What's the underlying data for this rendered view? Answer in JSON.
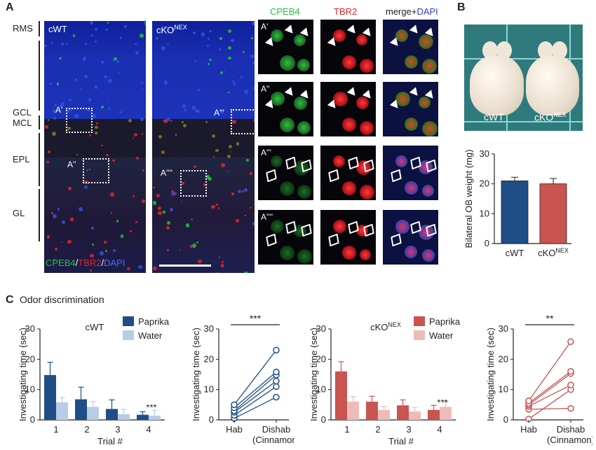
{
  "panel_a": {
    "letter": "A",
    "layers": [
      "RMS",
      "GCL",
      "MCL",
      "EPL",
      "GL"
    ],
    "cwt_label": "cWT",
    "cko_label_base": "cKO",
    "cko_label_sup": "NEX",
    "stain_legend": {
      "cpeb4": "CPEB4",
      "sep1": "/",
      "tbr2": "TBR2",
      "sep2": "/",
      "dapi": "DAPI"
    },
    "box_labels": [
      "A'",
      "A''",
      "A'''",
      "A''''"
    ],
    "column_headers": {
      "cpeb4": "CPEB4",
      "tbr2": "TBR2",
      "merge": "merge+",
      "dapi": "DAPI"
    },
    "row_labels": [
      "A'",
      "A''",
      "A'''",
      "A''''"
    ],
    "colors": {
      "green": "#22c33a",
      "red": "#e3262b",
      "blue": "#2b3fd6"
    }
  },
  "panel_b": {
    "letter": "B",
    "photo_labels": {
      "cwt": "cWT",
      "cko_base": "cKO",
      "cko_sup": "NEX"
    }
  },
  "panel_c": {
    "letter": "C",
    "title": "Odor discrimination"
  },
  "chart_data": [
    {
      "id": "ob_weight",
      "type": "bar",
      "categories": [
        "cWT",
        "cKO"
      ],
      "category_sup": [
        "",
        "NEX"
      ],
      "values": [
        21,
        20
      ],
      "errors": [
        1.2,
        1.8
      ],
      "colors": [
        "#1f4e87",
        "#c95450"
      ],
      "ylabel": "Bilateral OB weight (mg)",
      "ylim": [
        0,
        30
      ],
      "yticks": [
        0,
        10,
        20,
        30
      ]
    },
    {
      "id": "cwt_trials",
      "type": "bar",
      "group_label": "cWT",
      "group_sup": "",
      "categories": [
        "1",
        "2",
        "3",
        "4"
      ],
      "series": [
        {
          "name": "Paprika",
          "values": [
            14.8,
            6.8,
            3.6,
            1.7
          ],
          "errors": [
            4.2,
            4.0,
            3.0,
            1.0
          ],
          "color": "#1f4e87"
        },
        {
          "name": "Water",
          "values": [
            5.8,
            4.3,
            1.9,
            1.4
          ],
          "errors": [
            1.6,
            1.8,
            1.6,
            1.8
          ],
          "color": "#b7cde6"
        }
      ],
      "annotation": {
        "category": "4",
        "text": "***"
      },
      "xlabel": "Trial #",
      "ylabel": "Investigating time (sec)",
      "ylim": [
        0,
        30
      ],
      "yticks": [
        0,
        10,
        20,
        30
      ]
    },
    {
      "id": "cwt_paired",
      "type": "line",
      "categories": [
        "Hab",
        "Dishab"
      ],
      "sublabel": "(Cinnamon)",
      "series": [
        {
          "values": [
            0.5,
            7.5
          ]
        },
        {
          "values": [
            1.5,
            11.0
          ]
        },
        {
          "values": [
            2.5,
            12.8
          ]
        },
        {
          "values": [
            3.0,
            14.8
          ]
        },
        {
          "values": [
            4.0,
            15.8
          ]
        },
        {
          "values": [
            5.0,
            23.0
          ]
        }
      ],
      "color": "#1f4e87",
      "significance": "***",
      "ylabel": "Investigating time (sec)",
      "ylim": [
        0,
        30
      ],
      "yticks": [
        0,
        10,
        20,
        30
      ]
    },
    {
      "id": "cko_trials",
      "type": "bar",
      "group_label": "cKO",
      "group_sup": "NEX",
      "categories": [
        "1",
        "2",
        "3",
        "4"
      ],
      "series": [
        {
          "name": "Paprika",
          "values": [
            16.0,
            6.0,
            4.8,
            3.3
          ],
          "errors": [
            3.2,
            1.8,
            1.8,
            1.5
          ],
          "color": "#c95450"
        },
        {
          "name": "Water",
          "values": [
            6.0,
            3.3,
            2.8,
            4.3
          ],
          "errors": [
            1.7,
            1.2,
            1.3,
            1.8
          ],
          "color": "#eebcb8"
        }
      ],
      "annotation": {
        "category": "4",
        "text": "***"
      },
      "xlabel": "Trial #",
      "ylabel": "Investigating time (sec)",
      "ylim": [
        0,
        30
      ],
      "yticks": [
        0,
        10,
        20,
        30
      ]
    },
    {
      "id": "cko_paired",
      "type": "line",
      "categories": [
        "Hab",
        "Dishab"
      ],
      "sublabel": "(Cinnamon)",
      "series": [
        {
          "values": [
            0.3,
            10.0
          ]
        },
        {
          "values": [
            3.5,
            3.8
          ]
        },
        {
          "values": [
            4.5,
            11.5
          ]
        },
        {
          "values": [
            5.0,
            15.3
          ]
        },
        {
          "values": [
            5.5,
            16.0
          ]
        },
        {
          "values": [
            6.3,
            25.8
          ]
        }
      ],
      "color": "#c95450",
      "significance": "**",
      "ylabel": "Investigating time (sec)",
      "ylim": [
        0,
        30
      ],
      "yticks": [
        0,
        10,
        20,
        30
      ]
    }
  ]
}
